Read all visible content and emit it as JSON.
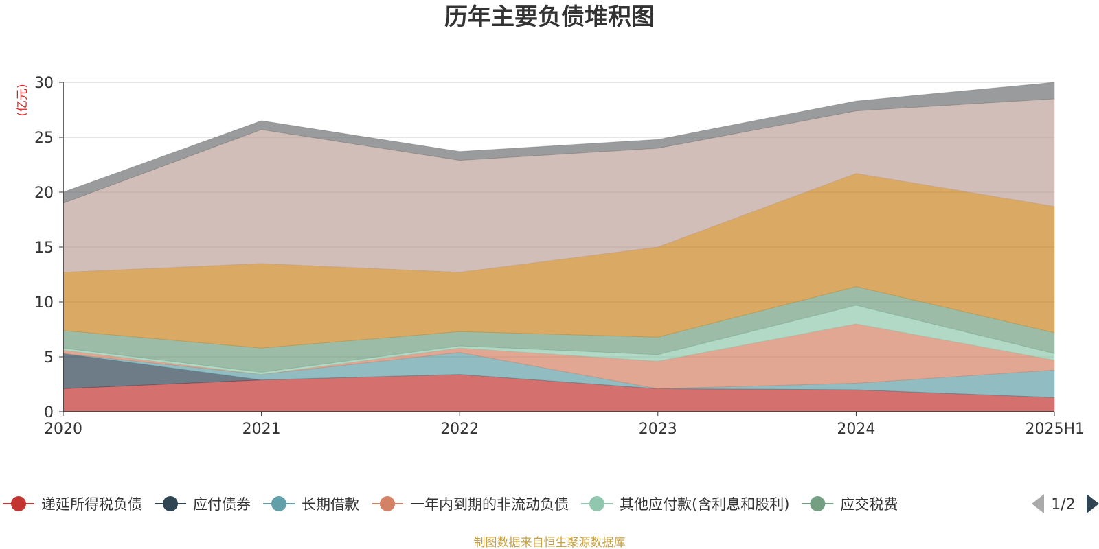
{
  "chart_data": {
    "type": "area",
    "title": "历年主要负债堆积图",
    "unit_label": "(亿元)",
    "categories": [
      "2020",
      "2021",
      "2022",
      "2023",
      "2024",
      "2025H1"
    ],
    "ylim": [
      0,
      30
    ],
    "yticks": [
      "0",
      "5",
      "10",
      "15",
      "20",
      "25",
      "30"
    ],
    "grid": true,
    "stacked": true,
    "series": [
      {
        "name": "递延所得税负债",
        "color": "#c23531",
        "values": [
          2.1,
          2.9,
          3.4,
          2.1,
          2.0,
          1.3
        ]
      },
      {
        "name": "应付债券",
        "color": "#2f4554",
        "values": [
          3.2,
          0.0,
          0.0,
          0.0,
          0.0,
          0.0
        ]
      },
      {
        "name": "长期借款",
        "color": "#61a0a8",
        "values": [
          0.0,
          0.5,
          2.0,
          0.0,
          0.6,
          2.5
        ]
      },
      {
        "name": "一年内到期的非流动负债",
        "color": "#d48265",
        "values": [
          0.3,
          0.0,
          0.4,
          2.5,
          5.4,
          0.9
        ]
      },
      {
        "name": "其他应付款(含利息和股利)",
        "color": "#91c7ae",
        "values": [
          0.2,
          0.2,
          0.2,
          0.6,
          1.7,
          0.6
        ]
      },
      {
        "name": "应交税费",
        "color": "#749f83",
        "values": [
          1.6,
          2.2,
          1.3,
          1.6,
          1.7,
          1.9
        ]
      },
      {
        "name": "",
        "color": "#ca8622",
        "values": [
          5.3,
          7.7,
          5.4,
          8.2,
          10.3,
          11.5
        ]
      },
      {
        "name": "",
        "color": "#bda29a",
        "values": [
          6.3,
          12.2,
          10.2,
          9.0,
          5.7,
          9.8
        ]
      },
      {
        "name": "",
        "color": "#6e7074",
        "values": [
          1.0,
          0.8,
          0.8,
          0.8,
          0.9,
          1.5
        ]
      }
    ],
    "legend": {
      "position": "bottom",
      "page_label": "1/2",
      "visible_items": [
        "递延所得税负债",
        "应付债券",
        "长期借款",
        "一年内到期的非流动负债",
        "其他应付款(含利息和股利)",
        "应交税费"
      ]
    },
    "source_note": "制图数据来自恒生聚源数据库"
  }
}
